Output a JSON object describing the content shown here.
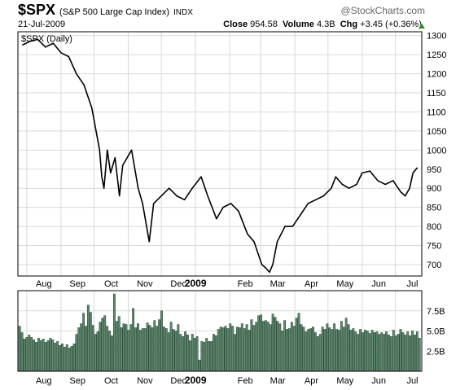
{
  "header": {
    "symbol": "$SPX",
    "name": "(S&P 500 Large Cap Index)",
    "exchange": "INDX",
    "brand": "@StockCharts.com",
    "date": "21-Jul-2009",
    "close_label": "Close",
    "close_value": "954.58",
    "volume_label": "Volume",
    "volume_value": "4.3B",
    "chg_label": "Chg",
    "chg_value": "+3.45 (+0.36%)",
    "chg_icon": "up-triangle-icon",
    "chg_color": "#2a8a2a"
  },
  "chart_data": [
    {
      "type": "line",
      "legend": "$SPX (Daily)",
      "x_tick_labels": [
        "Aug",
        "Sep",
        "Oct",
        "Nov",
        "Dec",
        "2009",
        "Feb",
        "Mar",
        "Apr",
        "May",
        "Jun",
        "Jul"
      ],
      "y_tick_labels": [
        "1300",
        "1250",
        "1200",
        "1150",
        "1100",
        "1050",
        "1000",
        "950",
        "900",
        "850",
        "800",
        "750",
        "700"
      ],
      "ylim": [
        670,
        1310
      ],
      "grid": true,
      "line_color": "#000000",
      "series": [
        {
          "x": [
            "2008-07-28",
            "2008-08-04",
            "2008-08-11",
            "2008-08-18",
            "2008-08-25",
            "2008-09-01",
            "2008-09-08",
            "2008-09-15",
            "2008-09-22",
            "2008-09-29",
            "2008-10-06",
            "2008-10-08",
            "2008-10-10",
            "2008-10-13",
            "2008-10-16",
            "2008-10-20",
            "2008-10-24",
            "2008-10-27",
            "2008-11-04",
            "2008-11-10",
            "2008-11-14",
            "2008-11-20",
            "2008-11-24",
            "2008-12-01",
            "2008-12-08",
            "2008-12-15",
            "2008-12-22",
            "2008-12-29",
            "2009-01-06",
            "2009-01-12",
            "2009-01-20",
            "2009-01-26",
            "2009-02-02",
            "2009-02-09",
            "2009-02-17",
            "2009-02-23",
            "2009-03-02",
            "2009-03-06",
            "2009-03-09",
            "2009-03-12",
            "2009-03-16",
            "2009-03-23",
            "2009-03-30",
            "2009-04-06",
            "2009-04-13",
            "2009-04-20",
            "2009-04-27",
            "2009-05-04",
            "2009-05-08",
            "2009-05-14",
            "2009-05-20",
            "2009-05-27",
            "2009-06-01",
            "2009-06-08",
            "2009-06-15",
            "2009-06-22",
            "2009-06-29",
            "2009-07-06",
            "2009-07-10",
            "2009-07-14",
            "2009-07-17",
            "2009-07-21"
          ],
          "y": [
            1275,
            1285,
            1290,
            1270,
            1280,
            1255,
            1245,
            1200,
            1170,
            1110,
            1000,
            930,
            900,
            1000,
            940,
            980,
            880,
            960,
            1000,
            900,
            860,
            760,
            860,
            880,
            900,
            880,
            870,
            900,
            930,
            880,
            820,
            850,
            860,
            840,
            780,
            760,
            700,
            690,
            680,
            700,
            760,
            800,
            800,
            830,
            860,
            870,
            880,
            900,
            930,
            910,
            900,
            910,
            940,
            945,
            920,
            910,
            920,
            890,
            880,
            900,
            940,
            954
          ]
        }
      ]
    },
    {
      "type": "bar",
      "y_tick_labels": [
        "7.5B",
        "5.0B",
        "2.5B"
      ],
      "ylim": [
        0,
        10
      ],
      "grid": true,
      "bar_color": "#5e8a6e",
      "x_tick_labels": [
        "Aug",
        "Sep",
        "Oct",
        "Nov",
        "Dec",
        "2009",
        "Feb",
        "Mar",
        "Apr",
        "May",
        "Jun",
        "Jul"
      ],
      "values": [
        5.6,
        4.8,
        4.0,
        4.2,
        4.5,
        4.2,
        3.9,
        3.6,
        4.1,
        3.8,
        4.0,
        3.6,
        3.8,
        4.1,
        3.9,
        3.5,
        3.7,
        3.2,
        3.4,
        3.0,
        3.3,
        2.9,
        3.1,
        3.4,
        4.6,
        5.4,
        5.9,
        7.2,
        5.6,
        8.2,
        7.3,
        5.7,
        4.6,
        4.9,
        6.1,
        6.6,
        6.9,
        5.6,
        5.0,
        4.4,
        9.6,
        6.2,
        6.8,
        5.4,
        5.9,
        5.8,
        5.1,
        5.8,
        7.8,
        5.4,
        5.9,
        5.1,
        5.3,
        5.3,
        6.0,
        5.7,
        5.4,
        6.3,
        5.6,
        6.4,
        7.5,
        5.5,
        5.3,
        4.8,
        6.1,
        5.2,
        5.0,
        5.8,
        4.6,
        4.3,
        4.9,
        4.5,
        3.8,
        4.6,
        4.1,
        4.3,
        1.4,
        3.7,
        3.6,
        4.1,
        3.7,
        3.7,
        4.6,
        4.4,
        5.2,
        5.5,
        5.4,
        5.6,
        5.3,
        5.9,
        5.6,
        4.6,
        5.5,
        5.4,
        5.9,
        5.3,
        5.8,
        5.1,
        6.4,
        5.7,
        6.1,
        6.9,
        7.0,
        6.2,
        6.3,
        6.1,
        5.8,
        7.1,
        6.7,
        6.2,
        5.9,
        5.0,
        6.3,
        5.2,
        5.3,
        6.1,
        5.6,
        6.6,
        7.2,
        5.8,
        5.5,
        4.9,
        5.2,
        5.3,
        5.5,
        4.8,
        4.3,
        4.6,
        5.5,
        5.2,
        5.9,
        5.4,
        5.2,
        5.9,
        5.2,
        5.1,
        6.2,
        5.5,
        6.6,
        5.8,
        5.1,
        5.3,
        4.9,
        4.6,
        5.2,
        4.8,
        5.1,
        5.0,
        4.7,
        5.1,
        4.8,
        4.9,
        4.6,
        4.8,
        4.6,
        4.9,
        4.5,
        4.3,
        5.1,
        4.4,
        4.6,
        5.2,
        4.8,
        4.5,
        4.9,
        4.4,
        5.0,
        4.5,
        4.9,
        4.1
      ]
    }
  ]
}
